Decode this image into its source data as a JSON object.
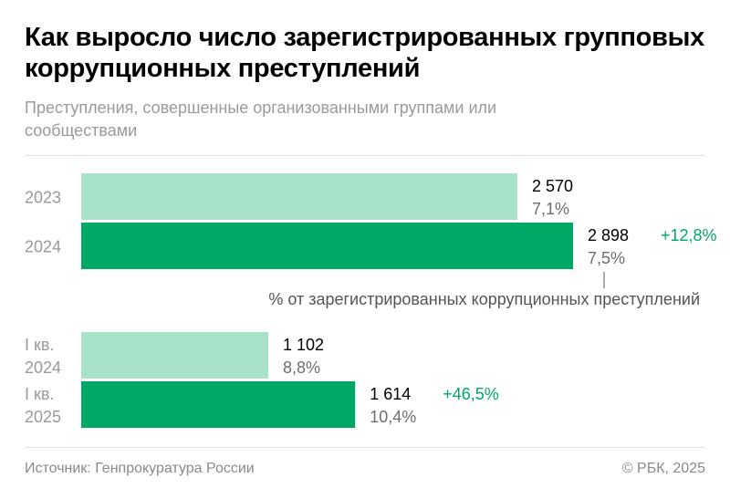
{
  "title": "Как выросло число зарегистрированных групповых коррупционных преступлений",
  "subtitle": "Преступления, совершенные организованными группами или сообществами",
  "source": "Источник: Генпрокуратура России",
  "copyright": "© РБК, 2025",
  "colors": {
    "previous": "#a8e2c9",
    "current": "#00a866",
    "growth": "#00a866"
  },
  "chart_data": {
    "type": "bar",
    "orientation": "horizontal",
    "annotation": "% от зарегистрированных коррупционных преступлений",
    "groups": [
      {
        "bars": [
          {
            "label": [
              "2023"
            ],
            "value": 2570,
            "value_label": "2 570",
            "share": "7,1%",
            "color": "previous"
          },
          {
            "label": [
              "2024"
            ],
            "value": 2898,
            "value_label": "2 898",
            "share": "7,5%",
            "change": "+12,8%",
            "color": "current"
          }
        ]
      },
      {
        "bars": [
          {
            "label": [
              "I кв.",
              "2024"
            ],
            "value": 1102,
            "value_label": "1 102",
            "share": "8,8%",
            "color": "previous"
          },
          {
            "label": [
              "I кв.",
              "2025"
            ],
            "value": 1614,
            "value_label": "1 614",
            "share": "10,4%",
            "change": "+46,5%",
            "color": "current"
          }
        ]
      }
    ]
  }
}
